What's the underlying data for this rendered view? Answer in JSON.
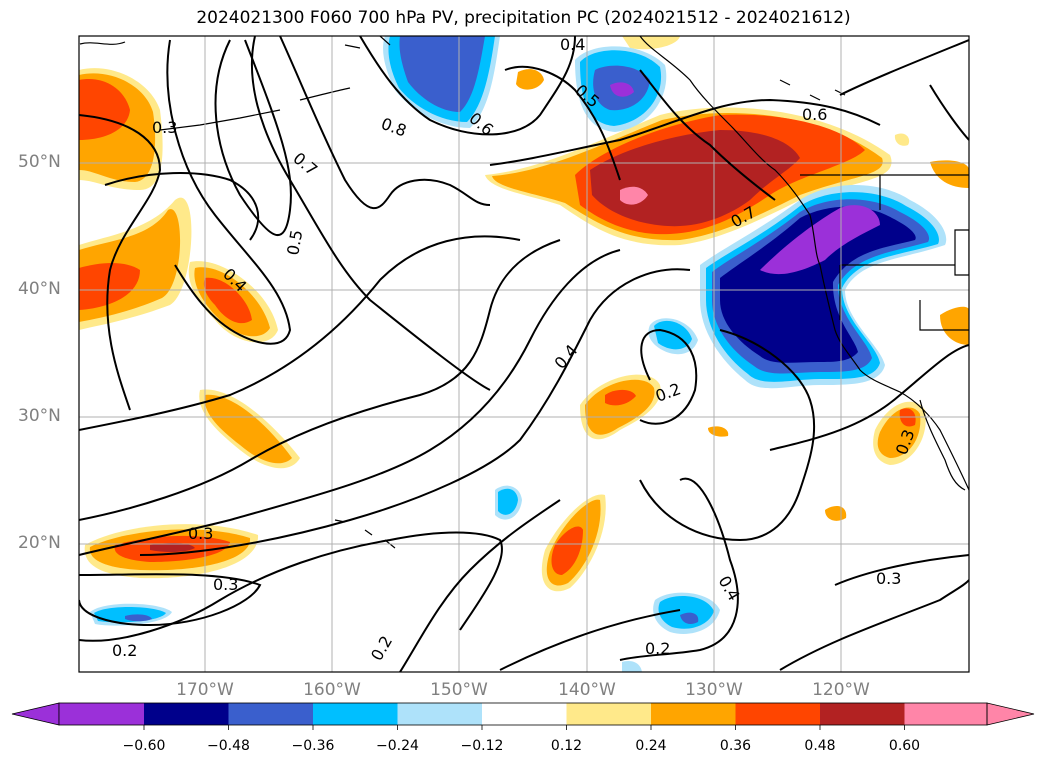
{
  "title": "2024021300 F060 700 hPa PV, precipitation PC (2024021512 - 2024021612)",
  "axes": {
    "lat_labels": [
      "50°N",
      "40°N",
      "30°N",
      "20°N"
    ],
    "lon_labels": [
      "170°W",
      "160°W",
      "150°W",
      "140°W",
      "130°W",
      "120°W"
    ]
  },
  "pv_contour_labels": [
    "0.3",
    "0.8",
    "0.7",
    "0.5",
    "0.4",
    "0.6",
    "0.4",
    "0.5",
    "0.6",
    "0.7",
    "0.4",
    "0.2",
    "0.3",
    "0.3",
    "0.2",
    "0.2",
    "0.4",
    "0.2",
    "0.3",
    "0.3"
  ],
  "colorbar": {
    "ticks": [
      "−0.60",
      "−0.48",
      "−0.36",
      "−0.24",
      "−0.12",
      "0.12",
      "0.24",
      "0.36",
      "0.48",
      "0.60"
    ],
    "colors": [
      "#9b30d9",
      "#00008b",
      "#3a5fcd",
      "#00bfff",
      "#aee2fa",
      "#ffffff",
      "#ffe98a",
      "#ffa500",
      "#ff4500",
      "#b22222",
      "#ff85a8"
    ]
  },
  "palette": {
    "purple": "#9b30d9",
    "navy": "#00008b",
    "royal": "#3a5fcd",
    "sky": "#00bfff",
    "light": "#aee2fa",
    "yellow": "#ffe98a",
    "orange": "#ffa500",
    "red": "#ff4500",
    "brick": "#b22222",
    "pink": "#ff85a8",
    "grid": "#b0b0b0",
    "contour": "#000000",
    "coast": "#000000"
  }
}
